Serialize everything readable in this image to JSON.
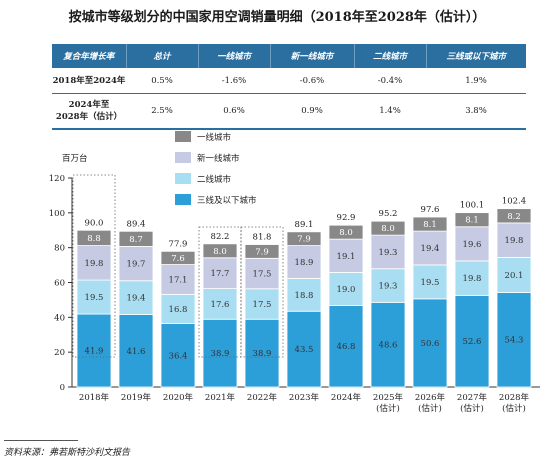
{
  "title": "按城市等级划分的中国家用空调销量明细（2018年至2028年（估计））",
  "cagr_table": {
    "headers": [
      "复合年增长率",
      "总计",
      "一线城市",
      "新一线城市",
      "二线城市",
      "三线或以下城市"
    ],
    "rows": [
      {
        "label": "2018年至2024年",
        "values": [
          "0.5%",
          "-1.6%",
          "-0.6%",
          "-0.4%",
          "1.9%"
        ]
      },
      {
        "label": "2024年至\n2028年（估计）",
        "values": [
          "2.5%",
          "0.6%",
          "0.9%",
          "1.4%",
          "3.8%"
        ]
      }
    ]
  },
  "unit": "百万台",
  "colors": {
    "tier1": "#888888",
    "newtier1": "#c6cbe3",
    "tier2": "#a9def2",
    "tier3plus": "#2d9fd8",
    "table_header": "#2a6fa0"
  },
  "chart_data": {
    "type": "bar",
    "stacked": true,
    "categories": [
      "2018年",
      "2019年",
      "2020年",
      "2021年",
      "2022年",
      "2023年",
      "2024年",
      "2025年\n(估计)",
      "2026年\n(估计)",
      "2027年\n(估计)",
      "2028年\n(估计)"
    ],
    "series": [
      {
        "name": "三线及以下城市",
        "key": "tier3plus",
        "values": [
          41.9,
          41.6,
          36.4,
          38.9,
          38.9,
          43.5,
          46.8,
          48.6,
          50.6,
          52.6,
          54.3
        ]
      },
      {
        "name": "二线城市",
        "key": "tier2",
        "values": [
          19.5,
          19.4,
          16.8,
          17.6,
          17.5,
          18.8,
          19.0,
          19.3,
          19.5,
          19.8,
          20.1
        ]
      },
      {
        "name": "新一线城市",
        "key": "newtier1",
        "values": [
          19.8,
          19.7,
          17.1,
          17.7,
          17.5,
          18.9,
          19.1,
          19.3,
          19.4,
          19.6,
          19.8
        ]
      },
      {
        "name": "一线城市",
        "key": "tier1",
        "values": [
          8.8,
          8.7,
          7.6,
          8.0,
          7.9,
          7.9,
          8.0,
          8.0,
          8.1,
          8.1,
          8.2
        ]
      }
    ],
    "totals": [
      90.0,
      89.4,
      77.9,
      82.2,
      81.8,
      89.1,
      92.9,
      95.2,
      97.6,
      100.1,
      102.4
    ],
    "legend_order": [
      "一线城市",
      "新一线城市",
      "二线城市",
      "三线及以下城市"
    ],
    "yticks": [
      0,
      20,
      40,
      60,
      80,
      100,
      120
    ],
    "ylim": [
      0,
      120
    ],
    "highlight_boxes": [
      0,
      3,
      4
    ],
    "ylabel": "百万台",
    "legend_position": "top"
  },
  "source": "资料来源：弗若斯特沙利文报告"
}
